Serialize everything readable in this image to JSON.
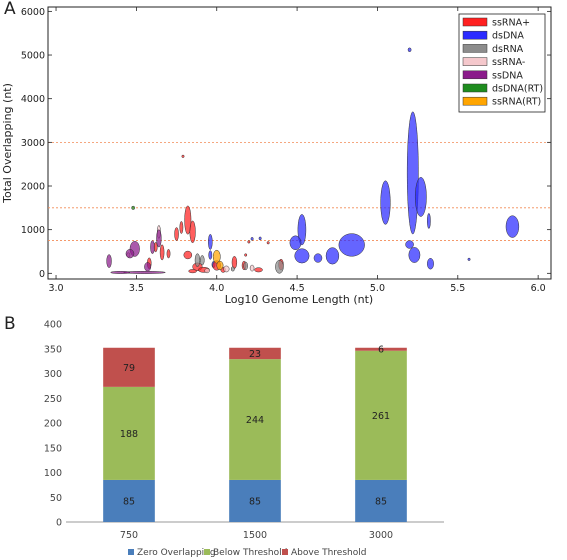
{
  "panels": [
    {
      "letter": "A",
      "chart_data": {
        "type": "scatter",
        "marker": "ellipse",
        "xlabel": "Log10 Genome Length (nt)",
        "ylabel": "Total Overlapping (nt)",
        "xlim": [
          2.95,
          6.08
        ],
        "ylim": [
          -130,
          6100
        ],
        "xticks": [
          "3.0",
          "3.5",
          "4.0",
          "4.5",
          "5.0",
          "5.5",
          "6.0"
        ],
        "yticks": [
          "0",
          "1000",
          "2000",
          "3000",
          "4000",
          "5000",
          "6000"
        ],
        "thresholds": [
          750,
          1500,
          3000
        ],
        "grid": false,
        "legend_position": "top-right",
        "legend": [
          "ssRNA+",
          "dsDNA",
          "dsRNA",
          "ssRNA-",
          "ssDNA",
          "dsDNA(RT)",
          "ssRNA(RT)"
        ],
        "colors": {
          "ssRNA+": "#ff2020",
          "dsDNA": "#2a2aff",
          "dsRNA": "#8c8c8c",
          "ssRNA-": "#f5c8cc",
          "ssDNA": "#8a1a8a",
          "dsDNA(RT)": "#1e8c1e",
          "ssRNA(RT)": "#ffa500",
          "threshold_line": "#f28a55"
        },
        "series": [
          {
            "name": "dsDNA",
            "points": [
              {
                "x": 5.2,
                "y": 5120,
                "w": 0.02,
                "h": 90
              },
              {
                "x": 5.22,
                "y": 2300,
                "w": 0.07,
                "h": 2800
              },
              {
                "x": 5.27,
                "y": 1750,
                "w": 0.07,
                "h": 900
              },
              {
                "x": 5.05,
                "y": 1620,
                "w": 0.06,
                "h": 1000
              },
              {
                "x": 5.32,
                "y": 1200,
                "w": 0.02,
                "h": 350
              },
              {
                "x": 5.84,
                "y": 1070,
                "w": 0.08,
                "h": 500
              },
              {
                "x": 4.53,
                "y": 1000,
                "w": 0.05,
                "h": 700
              },
              {
                "x": 4.49,
                "y": 700,
                "w": 0.07,
                "h": 320
              },
              {
                "x": 4.22,
                "y": 790,
                "w": 0.015,
                "h": 70
              },
              {
                "x": 4.27,
                "y": 800,
                "w": 0.015,
                "h": 70
              },
              {
                "x": 4.53,
                "y": 400,
                "w": 0.09,
                "h": 330
              },
              {
                "x": 4.72,
                "y": 400,
                "w": 0.08,
                "h": 380
              },
              {
                "x": 4.84,
                "y": 650,
                "w": 0.16,
                "h": 520
              },
              {
                "x": 4.63,
                "y": 350,
                "w": 0.05,
                "h": 200
              },
              {
                "x": 5.2,
                "y": 660,
                "w": 0.05,
                "h": 180
              },
              {
                "x": 5.23,
                "y": 420,
                "w": 0.07,
                "h": 350
              },
              {
                "x": 5.33,
                "y": 220,
                "w": 0.04,
                "h": 250
              },
              {
                "x": 5.57,
                "y": 320,
                "w": 0.015,
                "h": 60
              },
              {
                "x": 3.96,
                "y": 720,
                "w": 0.025,
                "h": 350
              },
              {
                "x": 3.96,
                "y": 420,
                "w": 0.02,
                "h": 200
              },
              {
                "x": 3.98,
                "y": 200,
                "w": 0.02,
                "h": 150
              }
            ]
          },
          {
            "name": "ssRNA+",
            "points": [
              {
                "x": 3.79,
                "y": 2680,
                "w": 0.015,
                "h": 60
              },
              {
                "x": 3.82,
                "y": 1220,
                "w": 0.04,
                "h": 650
              },
              {
                "x": 3.85,
                "y": 950,
                "w": 0.035,
                "h": 500
              },
              {
                "x": 3.78,
                "y": 1050,
                "w": 0.02,
                "h": 280
              },
              {
                "x": 3.75,
                "y": 900,
                "w": 0.025,
                "h": 300
              },
              {
                "x": 3.66,
                "y": 480,
                "w": 0.025,
                "h": 350
              },
              {
                "x": 3.7,
                "y": 450,
                "w": 0.02,
                "h": 200
              },
              {
                "x": 3.82,
                "y": 420,
                "w": 0.05,
                "h": 180
              },
              {
                "x": 3.88,
                "y": 150,
                "w": 0.06,
                "h": 180
              },
              {
                "x": 3.92,
                "y": 80,
                "w": 0.07,
                "h": 120
              },
              {
                "x": 4.0,
                "y": 180,
                "w": 0.05,
                "h": 220
              },
              {
                "x": 4.04,
                "y": 80,
                "w": 0.03,
                "h": 120
              },
              {
                "x": 4.11,
                "y": 250,
                "w": 0.03,
                "h": 280
              },
              {
                "x": 4.17,
                "y": 180,
                "w": 0.025,
                "h": 200
              },
              {
                "x": 4.2,
                "y": 720,
                "w": 0.015,
                "h": 60
              },
              {
                "x": 4.18,
                "y": 420,
                "w": 0.015,
                "h": 60
              },
              {
                "x": 4.4,
                "y": 200,
                "w": 0.03,
                "h": 250
              },
              {
                "x": 4.32,
                "y": 700,
                "w": 0.015,
                "h": 60
              },
              {
                "x": 3.58,
                "y": 230,
                "w": 0.025,
                "h": 250
              },
              {
                "x": 3.62,
                "y": 600,
                "w": 0.02,
                "h": 220
              },
              {
                "x": 3.85,
                "y": 50,
                "w": 0.05,
                "h": 80
              },
              {
                "x": 4.26,
                "y": 80,
                "w": 0.05,
                "h": 100
              }
            ]
          },
          {
            "name": "dsRNA",
            "points": [
              {
                "x": 4.39,
                "y": 150,
                "w": 0.05,
                "h": 300
              },
              {
                "x": 3.88,
                "y": 300,
                "w": 0.03,
                "h": 300
              },
              {
                "x": 3.91,
                "y": 300,
                "w": 0.025,
                "h": 220
              },
              {
                "x": 4.18,
                "y": 170,
                "w": 0.025,
                "h": 180
              },
              {
                "x": 4.1,
                "y": 100,
                "w": 0.02,
                "h": 100
              }
            ]
          },
          {
            "name": "ssRNA-",
            "points": [
              {
                "x": 3.64,
                "y": 950,
                "w": 0.02,
                "h": 300
              },
              {
                "x": 4.06,
                "y": 100,
                "w": 0.035,
                "h": 140
              },
              {
                "x": 4.22,
                "y": 120,
                "w": 0.025,
                "h": 140
              },
              {
                "x": 3.45,
                "y": 420,
                "w": 0.02,
                "h": 100
              },
              {
                "x": 3.94,
                "y": 60,
                "w": 0.03,
                "h": 100
              }
            ]
          },
          {
            "name": "ssDNA",
            "points": [
              {
                "x": 3.49,
                "y": 560,
                "w": 0.06,
                "h": 350
              },
              {
                "x": 3.6,
                "y": 600,
                "w": 0.025,
                "h": 300
              },
              {
                "x": 3.64,
                "y": 800,
                "w": 0.03,
                "h": 400
              },
              {
                "x": 3.46,
                "y": 450,
                "w": 0.05,
                "h": 200
              },
              {
                "x": 3.33,
                "y": 280,
                "w": 0.03,
                "h": 300
              },
              {
                "x": 3.57,
                "y": 150,
                "w": 0.04,
                "h": 200
              },
              {
                "x": 3.55,
                "y": 20,
                "w": 0.26,
                "h": 30
              },
              {
                "x": 3.4,
                "y": 20,
                "w": 0.12,
                "h": 25
              }
            ]
          },
          {
            "name": "dsDNA(RT)",
            "points": [
              {
                "x": 3.48,
                "y": 1500,
                "w": 0.02,
                "h": 80
              }
            ]
          },
          {
            "name": "ssRNA(RT)",
            "points": [
              {
                "x": 4.0,
                "y": 380,
                "w": 0.045,
                "h": 300
              },
              {
                "x": 4.02,
                "y": 180,
                "w": 0.04,
                "h": 200
              }
            ]
          }
        ]
      }
    },
    {
      "letter": "B",
      "chart_data": {
        "type": "bar",
        "stacked": true,
        "categories": [
          "750",
          "1500",
          "3000"
        ],
        "ylim": [
          0,
          400
        ],
        "yticks": [
          "0",
          "50",
          "100",
          "150",
          "200",
          "250",
          "300",
          "350",
          "400"
        ],
        "grid": false,
        "legend_position": "bottom",
        "series": [
          {
            "name": "Zero Overlapping",
            "color": "#4a7ebb",
            "values": [
              85,
              85,
              85
            ]
          },
          {
            "name": "Below Threshold",
            "color": "#9bbb59",
            "values": [
              188,
              244,
              261
            ]
          },
          {
            "name": "Above Threshold",
            "color": "#c0504d",
            "values": [
              79,
              23,
              6
            ]
          }
        ]
      }
    }
  ]
}
